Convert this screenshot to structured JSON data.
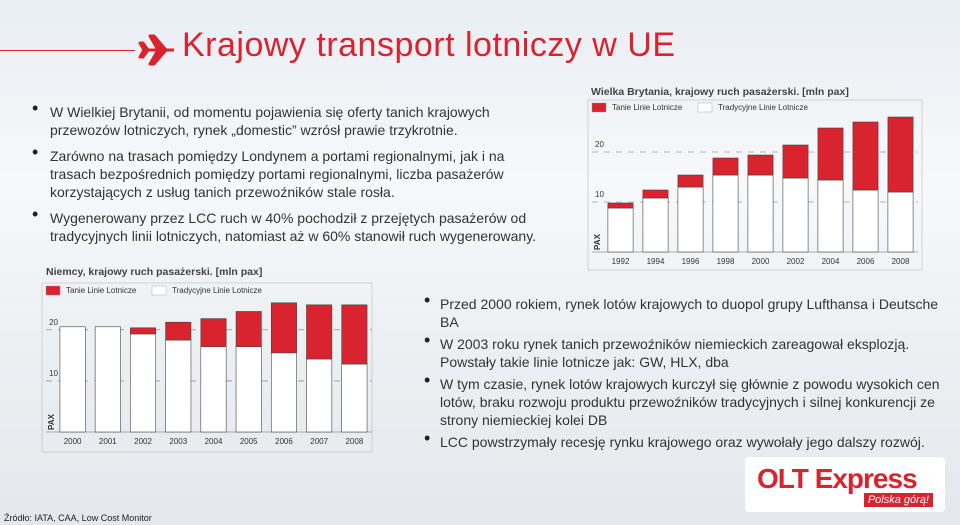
{
  "title": "Krajowy transport lotniczy w UE",
  "top_bullets": [
    "W Wielkiej Brytanii, od momentu pojawienia się oferty tanich krajowych przewozów lotniczych, rynek „domestic” wzrósł prawie trzykrotnie.",
    "Zarówno na trasach pomiędzy Londynem a portami regionalnymi, jak i na trasach bezpośrednich pomiędzy portami regionalnymi, liczba pasażerów korzystających z usług tanich przewoźników stale rosła.",
    "Wygenerowany przez LCC ruch w 40% pochodził z przejętych pasażerów od tradycyjnych linii lotniczych, natomiast aż w 60% stanowił ruch wygenerowany."
  ],
  "bottom_bullets": [
    "Przed 2000 rokiem, rynek lotów krajowych to duopol grupy Lufthansa i Deutsche BA",
    "W 2003 roku rynek tanich przewoźników niemieckich zareagował eksplozją. Powstały takie linie lotnicze jak: GW, HLX, dba",
    "W tym czasie, rynek lotów krajowych kurczył się głównie z powodu wysokich cen lotów, braku rozwoju produktu przewoźników tradycyjnych i silnej konkurencji ze strony niemieckiej kolei DB",
    "LCC powstrzymały recesję rynku krajowego oraz wywołały jego dalszy rozwój."
  ],
  "source": "Źródło: IATA, CAA, Low Cost Monitor",
  "logo": {
    "brand": "OLT Express",
    "tagline": "Polska górą!"
  },
  "chart_data": [
    {
      "type": "stacked-bar",
      "title": "Wielka Brytania, krajowy ruch pasażerski. [mln pax]",
      "y_label": "PAX",
      "categories": [
        "1992",
        "1994",
        "1996",
        "1998",
        "2000",
        "2002",
        "2004",
        "2006",
        "2008"
      ],
      "series": [
        {
          "name": "Tanie Linie Lotnicze",
          "color": "#d9232e",
          "values": [
            1,
            1.6,
            2.4,
            3.4,
            4,
            6.6,
            10.4,
            13.6,
            15
          ]
        },
        {
          "name": "Tradycyjne Linie Lotnicze",
          "color": "#ffffff",
          "values": [
            8.8,
            10.8,
            13,
            15.4,
            15.4,
            14.8,
            14.4,
            12.4,
            12
          ]
        }
      ],
      "ylim": [
        0,
        28
      ],
      "yticks": [
        10,
        20
      ],
      "grid": true
    },
    {
      "type": "stacked-bar",
      "title": "Niemcy, krajowy ruch pasażerski. [mln pax]",
      "y_label": "PAX",
      "categories": [
        "2000",
        "2001",
        "2002",
        "2003",
        "2004",
        "2005",
        "2006",
        "2007",
        "2008"
      ],
      "series": [
        {
          "name": "Tanie Linie Lotnicze",
          "color": "#d9232e",
          "values": [
            0,
            0,
            1.2,
            3.5,
            5.5,
            6.9,
            9.8,
            10.6,
            11.6
          ]
        },
        {
          "name": "Tradycyjne Linie Lotnicze",
          "color": "#ffffff",
          "values": [
            20.6,
            20.6,
            19.2,
            18,
            16.7,
            16.7,
            15.5,
            14.3,
            13.3
          ]
        }
      ],
      "ylim": [
        0,
        28
      ],
      "yticks": [
        10,
        20
      ],
      "grid": true
    }
  ]
}
